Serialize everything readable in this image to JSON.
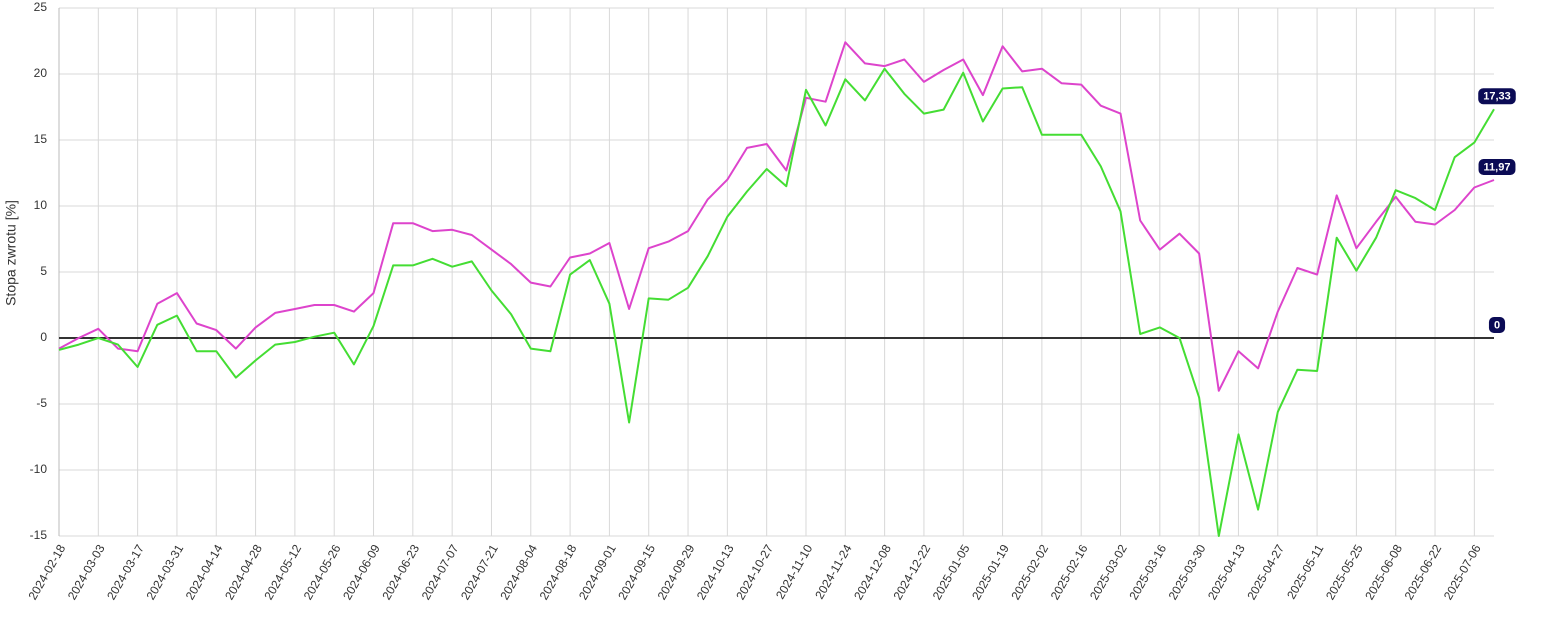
{
  "chart_data": {
    "type": "line",
    "y_label": "Stopa zwrotu [%]",
    "categories": [
      "2024-02-18",
      null,
      "2024-03-03",
      null,
      "2024-03-17",
      null,
      "2024-03-31",
      null,
      "2024-04-14",
      null,
      "2024-04-28",
      null,
      "2024-05-12",
      null,
      "2024-05-26",
      null,
      "2024-06-09",
      null,
      "2024-06-23",
      null,
      "2024-07-07",
      null,
      "2024-07-21",
      null,
      "2024-08-04",
      null,
      "2024-08-18",
      null,
      "2024-09-01",
      null,
      "2024-09-15",
      null,
      "2024-09-29",
      null,
      "2024-10-13",
      null,
      "2024-10-27",
      null,
      "2024-11-10",
      null,
      "2024-11-24",
      null,
      "2024-12-08",
      null,
      "2024-12-22",
      null,
      "2025-01-05",
      null,
      "2025-01-19",
      null,
      "2025-02-02",
      null,
      "2025-02-16",
      null,
      "2025-03-02",
      null,
      "2025-03-16",
      null,
      "2025-03-30",
      null,
      "2025-04-13",
      null,
      "2025-04-27",
      null,
      "2025-05-11",
      null,
      "2025-05-25",
      null,
      "2025-06-08",
      null,
      "2025-06-22",
      null,
      "2025-07-06",
      null
    ],
    "series": [
      {
        "color": "#dd44cc",
        "values": [
          -0.8,
          0,
          0.7,
          -0.8,
          -1.0,
          2.6,
          3.4,
          1.1,
          0.6,
          -0.8,
          0.8,
          1.9,
          2.2,
          2.5,
          2.5,
          2.0,
          3.4,
          8.7,
          8.7,
          8.1,
          8.2,
          7.8,
          6.7,
          5.6,
          4.2,
          3.9,
          6.1,
          6.4,
          7.2,
          2.2,
          6.8,
          7.3,
          8.1,
          10.5,
          12.0,
          14.4,
          14.7,
          12.7,
          18.2,
          17.9,
          22.4,
          20.8,
          20.6,
          21.1,
          19.4,
          20.3,
          21.1,
          18.4,
          22.1,
          20.2,
          20.4,
          19.3,
          19.2,
          17.6,
          17.0,
          8.9,
          6.7,
          7.9,
          6.4,
          -4.0,
          -1.0,
          -2.3,
          2.0,
          5.3,
          4.8,
          10.8,
          6.8,
          8.8,
          10.7,
          8.8,
          8.6,
          9.7,
          11.4,
          11.97
        ],
        "value_labels": [
          null,
          null,
          null,
          null,
          null,
          null,
          null,
          null,
          null,
          null,
          null,
          null,
          null,
          null,
          null,
          null,
          null,
          null,
          null,
          null,
          null,
          null,
          null,
          null,
          null,
          null,
          null,
          null,
          null,
          null,
          null,
          null,
          null,
          null,
          null,
          null,
          null,
          null,
          null,
          null,
          null,
          null,
          null,
          null,
          null,
          null,
          null,
          null,
          null,
          null,
          null,
          null,
          null,
          null,
          null,
          null,
          null,
          null,
          null,
          null,
          null,
          null,
          null,
          null,
          null,
          null,
          null,
          null,
          null,
          null,
          null,
          null,
          null,
          "11,97"
        ]
      },
      {
        "color": "#44dd33",
        "values": [
          -0.9,
          -0.5,
          0,
          -0.5,
          -2.2,
          1.0,
          1.7,
          -1.0,
          -1.0,
          -3.0,
          -1.7,
          -0.5,
          -0.3,
          0.1,
          0.4,
          -2.0,
          0.9,
          5.5,
          5.5,
          6.0,
          5.4,
          5.8,
          3.6,
          1.8,
          -0.8,
          -1.0,
          4.8,
          5.9,
          2.6,
          -6.4,
          3.0,
          2.9,
          3.8,
          6.2,
          9.2,
          11.1,
          12.8,
          11.5,
          18.8,
          16.1,
          19.6,
          18.0,
          20.4,
          18.5,
          17.0,
          17.3,
          20.1,
          16.4,
          18.9,
          19.0,
          15.4,
          15.4,
          15.4,
          13.0,
          9.6,
          0.3,
          0.8,
          0.0,
          -4.5,
          -15.0,
          -7.3,
          -13.0,
          -5.6,
          -2.4,
          -2.5,
          7.6,
          5.1,
          7.6,
          11.2,
          10.6,
          9.7,
          13.7,
          14.8,
          17.33
        ],
        "value_labels": [
          null,
          null,
          null,
          null,
          null,
          null,
          null,
          null,
          null,
          null,
          null,
          null,
          null,
          null,
          null,
          null,
          null,
          null,
          null,
          null,
          null,
          null,
          null,
          null,
          null,
          null,
          null,
          null,
          null,
          null,
          null,
          null,
          null,
          null,
          null,
          null,
          null,
          null,
          null,
          null,
          null,
          null,
          null,
          null,
          null,
          null,
          null,
          null,
          null,
          null,
          null,
          null,
          null,
          null,
          null,
          null,
          null,
          null,
          null,
          null,
          null,
          null,
          null,
          null,
          null,
          null,
          null,
          null,
          null,
          null,
          null,
          null,
          null,
          "17,33"
        ]
      }
    ],
    "baseline": 0,
    "ylim": [
      -15,
      25
    ],
    "yticks": [
      -15,
      -10,
      -5,
      0,
      5,
      10,
      15,
      20,
      25
    ],
    "grid": true
  }
}
